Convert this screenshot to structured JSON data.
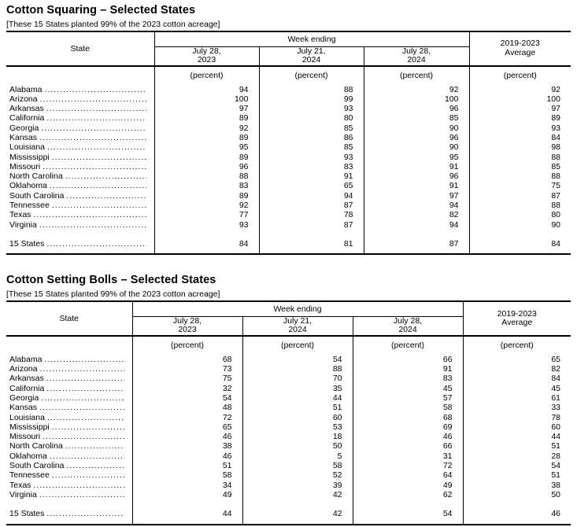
{
  "page": {
    "background": "#ffffff",
    "text_color": "#000000",
    "line_color": "#000000"
  },
  "tables": [
    {
      "title": "Cotton Squaring – Selected States",
      "subtitle": "[These 15 States planted 99% of the 2023 cotton acreage]",
      "header": {
        "state_label": "State",
        "week_ending_label": "Week ending",
        "avg": {
          "line1": "2019-2023",
          "line2": "Average"
        },
        "columns": [
          {
            "line1": "July 28,",
            "line2": "2023"
          },
          {
            "line1": "July 21,",
            "line2": "2024"
          },
          {
            "line1": "July 28,",
            "line2": "2024"
          }
        ],
        "unit": "(percent)"
      },
      "rows": [
        {
          "state": "Alabama",
          "values": [
            94,
            88,
            92,
            92
          ]
        },
        {
          "state": "Arizona",
          "values": [
            100,
            99,
            100,
            100
          ]
        },
        {
          "state": "Arkansas",
          "values": [
            97,
            93,
            96,
            97
          ]
        },
        {
          "state": "California",
          "values": [
            89,
            80,
            85,
            89
          ]
        },
        {
          "state": "Georgia",
          "values": [
            92,
            85,
            90,
            93
          ]
        },
        {
          "state": "Kansas",
          "values": [
            89,
            86,
            96,
            84
          ]
        },
        {
          "state": "Louisiana",
          "values": [
            95,
            85,
            90,
            98
          ]
        },
        {
          "state": "Mississippi",
          "values": [
            89,
            93,
            95,
            88
          ]
        },
        {
          "state": "Missouri",
          "values": [
            96,
            83,
            91,
            85
          ]
        },
        {
          "state": "North Carolina",
          "values": [
            88,
            91,
            96,
            88
          ]
        },
        {
          "state": "Oklahoma",
          "values": [
            83,
            65,
            91,
            75
          ]
        },
        {
          "state": "South Carolina",
          "values": [
            89,
            94,
            97,
            87
          ]
        },
        {
          "state": "Tennessee",
          "values": [
            92,
            87,
            94,
            88
          ]
        },
        {
          "state": "Texas",
          "values": [
            77,
            78,
            82,
            80
          ]
        },
        {
          "state": "Virginia",
          "values": [
            93,
            87,
            94,
            90
          ]
        }
      ],
      "total": {
        "state": "15 States",
        "values": [
          84,
          81,
          87,
          84
        ]
      }
    },
    {
      "title": "Cotton Setting Bolls – Selected States",
      "subtitle": "[These 15 States planted 99% of the 2023 cotton acreage]",
      "header": {
        "state_label": "State",
        "week_ending_label": "Week ending",
        "avg": {
          "line1": "2019-2023",
          "line2": "Average"
        },
        "columns": [
          {
            "line1": "July 28,",
            "line2": "2023"
          },
          {
            "line1": "July 21,",
            "line2": "2024"
          },
          {
            "line1": "July 28,",
            "line2": "2024"
          }
        ],
        "unit": "(percent)"
      },
      "rows": [
        {
          "state": "Alabama",
          "values": [
            68,
            54,
            66,
            65
          ]
        },
        {
          "state": "Arizona",
          "values": [
            73,
            88,
            91,
            82
          ]
        },
        {
          "state": "Arkansas",
          "values": [
            75,
            70,
            83,
            84
          ]
        },
        {
          "state": "California",
          "values": [
            32,
            35,
            45,
            45
          ]
        },
        {
          "state": "Georgia",
          "values": [
            54,
            44,
            57,
            61
          ]
        },
        {
          "state": "Kansas",
          "values": [
            48,
            51,
            58,
            33
          ]
        },
        {
          "state": "Louisiana",
          "values": [
            72,
            60,
            68,
            78
          ]
        },
        {
          "state": "Mississippi",
          "values": [
            65,
            53,
            69,
            60
          ]
        },
        {
          "state": "Missouri",
          "values": [
            46,
            18,
            46,
            44
          ]
        },
        {
          "state": "North Carolina",
          "values": [
            38,
            50,
            66,
            51
          ]
        },
        {
          "state": "Oklahoma",
          "values": [
            46,
            5,
            31,
            28
          ]
        },
        {
          "state": "South Carolina",
          "values": [
            51,
            58,
            72,
            54
          ]
        },
        {
          "state": "Tennessee",
          "values": [
            58,
            52,
            64,
            51
          ]
        },
        {
          "state": "Texas",
          "values": [
            34,
            39,
            49,
            38
          ]
        },
        {
          "state": "Virginia",
          "values": [
            49,
            42,
            62,
            50
          ]
        }
      ],
      "total": {
        "state": "15 States",
        "values": [
          44,
          42,
          54,
          46
        ]
      }
    }
  ]
}
